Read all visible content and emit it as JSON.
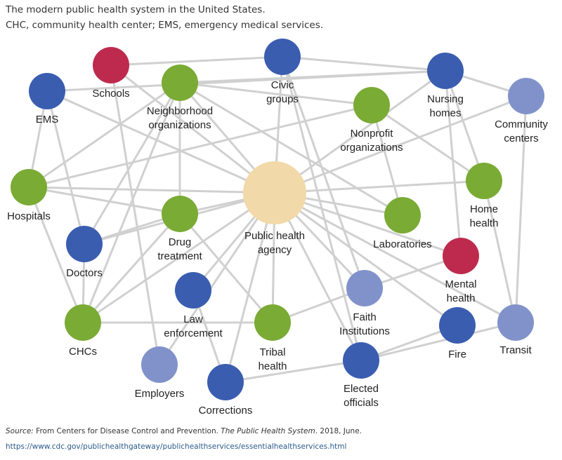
{
  "caption": {
    "line1": "The modern public health system in the United States.",
    "line2": "CHC, community health center; EMS, emergency medical services."
  },
  "colors": {
    "blue": "#3a5db0",
    "red": "#be2a4e",
    "green": "#7aab35",
    "lightblue": "#8192cb",
    "beige": "#f2d9a9",
    "edge": "#d0d0d0"
  },
  "nodes": [
    {
      "id": "ems",
      "label": [
        "EMS"
      ],
      "color": "blue"
    },
    {
      "id": "schools",
      "label": [
        "Schools"
      ],
      "color": "red"
    },
    {
      "id": "neighborhood",
      "label": [
        "Neighborhood",
        "organizations"
      ],
      "color": "green"
    },
    {
      "id": "civic",
      "label": [
        "Civic",
        "groups"
      ],
      "color": "blue"
    },
    {
      "id": "nursing",
      "label": [
        "Nursing",
        "homes"
      ],
      "color": "blue"
    },
    {
      "id": "nonprofit",
      "label": [
        "Nonprofit",
        "organizations"
      ],
      "color": "green"
    },
    {
      "id": "community",
      "label": [
        "Community",
        "centers"
      ],
      "color": "lightblue"
    },
    {
      "id": "hospitals",
      "label": [
        "Hospitals"
      ],
      "color": "green"
    },
    {
      "id": "drug",
      "label": [
        "Drug",
        "treatment"
      ],
      "color": "green"
    },
    {
      "id": "pha",
      "label": [
        "Public health",
        "agency"
      ],
      "color": "beige"
    },
    {
      "id": "labs",
      "label": [
        "Laboratories"
      ],
      "color": "green"
    },
    {
      "id": "home",
      "label": [
        "Home",
        "health"
      ],
      "color": "green"
    },
    {
      "id": "doctors",
      "label": [
        "Doctors"
      ],
      "color": "blue"
    },
    {
      "id": "mental",
      "label": [
        "Mental",
        "health"
      ],
      "color": "red"
    },
    {
      "id": "law",
      "label": [
        "Law",
        "enforcement"
      ],
      "color": "blue"
    },
    {
      "id": "faith",
      "label": [
        "Faith",
        "Institutions"
      ],
      "color": "lightblue"
    },
    {
      "id": "tribal",
      "label": [
        "Tribal",
        "health"
      ],
      "color": "green"
    },
    {
      "id": "fire",
      "label": [
        "Fire"
      ],
      "color": "blue"
    },
    {
      "id": "transit",
      "label": [
        "Transit"
      ],
      "color": "lightblue"
    },
    {
      "id": "chcs",
      "label": [
        "CHCs"
      ],
      "color": "green"
    },
    {
      "id": "employers",
      "label": [
        "Employers"
      ],
      "color": "lightblue"
    },
    {
      "id": "corrections",
      "label": [
        "Corrections"
      ],
      "color": "blue"
    },
    {
      "id": "elected",
      "label": [
        "Elected",
        "officials"
      ],
      "color": "blue"
    }
  ],
  "edges": [
    [
      "ems",
      "hospitals"
    ],
    [
      "ems",
      "doctors"
    ],
    [
      "ems",
      "pha"
    ],
    [
      "ems",
      "nursing"
    ],
    [
      "schools",
      "civic"
    ],
    [
      "schools",
      "employers"
    ],
    [
      "schools",
      "pha"
    ],
    [
      "neighborhood",
      "nursing"
    ],
    [
      "neighborhood",
      "drug"
    ],
    [
      "neighborhood",
      "hospitals"
    ],
    [
      "neighborhood",
      "doctors"
    ],
    [
      "neighborhood",
      "chcs"
    ],
    [
      "neighborhood",
      "pha"
    ],
    [
      "neighborhood",
      "nonprofit"
    ],
    [
      "neighborhood",
      "labs"
    ],
    [
      "civic",
      "nursing"
    ],
    [
      "civic",
      "pha"
    ],
    [
      "civic",
      "elected"
    ],
    [
      "civic",
      "faith"
    ],
    [
      "nursing",
      "community"
    ],
    [
      "nursing",
      "home"
    ],
    [
      "nursing",
      "mental"
    ],
    [
      "nursing",
      "pha"
    ],
    [
      "nonprofit",
      "hospitals"
    ],
    [
      "nonprofit",
      "labs"
    ],
    [
      "nonprofit",
      "home"
    ],
    [
      "community",
      "pha"
    ],
    [
      "community",
      "transit"
    ],
    [
      "hospitals",
      "pha"
    ],
    [
      "hospitals",
      "drug"
    ],
    [
      "hospitals",
      "chcs"
    ],
    [
      "drug",
      "doctors"
    ],
    [
      "drug",
      "chcs"
    ],
    [
      "drug",
      "tribal"
    ],
    [
      "drug",
      "pha"
    ],
    [
      "doctors",
      "pha"
    ],
    [
      "doctors",
      "chcs"
    ],
    [
      "pha",
      "home"
    ],
    [
      "pha",
      "labs"
    ],
    [
      "pha",
      "mental"
    ],
    [
      "pha",
      "transit"
    ],
    [
      "pha",
      "fire"
    ],
    [
      "pha",
      "faith"
    ],
    [
      "pha",
      "tribal"
    ],
    [
      "pha",
      "law"
    ],
    [
      "pha",
      "elected"
    ],
    [
      "pha",
      "corrections"
    ],
    [
      "pha",
      "employers"
    ],
    [
      "pha",
      "chcs"
    ],
    [
      "mental",
      "faith"
    ],
    [
      "home",
      "transit"
    ],
    [
      "law",
      "corrections"
    ],
    [
      "chcs",
      "tribal"
    ],
    [
      "tribal",
      "faith"
    ],
    [
      "elected",
      "fire"
    ],
    [
      "elected",
      "transit"
    ],
    [
      "elected",
      "corrections"
    ]
  ],
  "source": {
    "label": "Source:",
    "text": " From Centers for Disease Control and Prevention. ",
    "title": "The Public Health System",
    "date": ". 2018, June. ",
    "url": "https://www.cdc.gov/publichealthgateway/publichealthservices/essentialhealthservices.html"
  }
}
